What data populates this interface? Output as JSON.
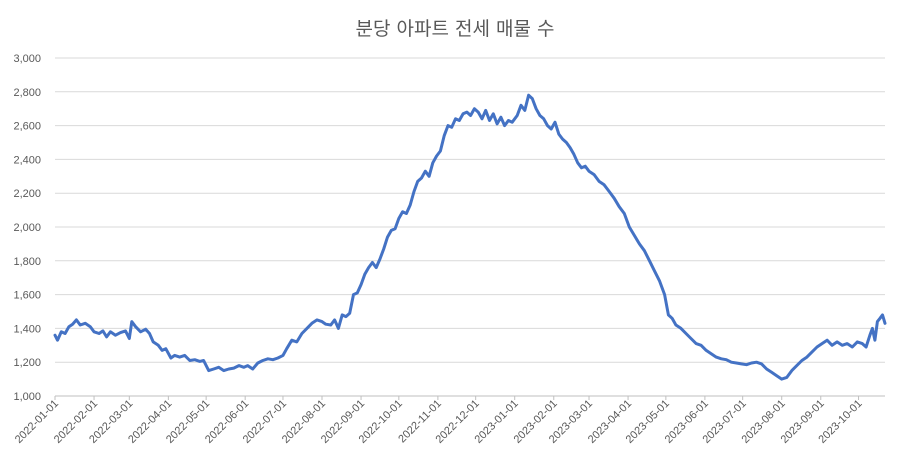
{
  "chart_data": {
    "type": "line",
    "title": "분당 아파트 전세 매물 수",
    "xlabel": "",
    "ylabel": "",
    "ylim": [
      1000,
      3000
    ],
    "y_ticks": [
      "1,000",
      "1,200",
      "1,400",
      "1,600",
      "1,800",
      "2,000",
      "2,200",
      "2,400",
      "2,600",
      "2,800",
      "3,000"
    ],
    "x_ticks": [
      "2022-01-01",
      "2022-02-01",
      "2022-03-01",
      "2022-04-01",
      "2022-05-01",
      "2022-06-01",
      "2022-07-01",
      "2022-08-01",
      "2022-09-01",
      "2022-10-01",
      "2022-11-01",
      "2022-12-01",
      "2023-01-01",
      "2023-02-01",
      "2023-03-01",
      "2023-04-01",
      "2023-05-01",
      "2023-06-01",
      "2023-07-01",
      "2023-08-01",
      "2023-09-01",
      "2023-10-01"
    ],
    "x_range": [
      "2022-01-01",
      "2023-10-22"
    ],
    "grid": "horizontal",
    "legend": "none",
    "line_color": "#4472C4",
    "series": [
      {
        "points": [
          [
            "2022-01-01",
            1360
          ],
          [
            "2022-01-03",
            1330
          ],
          [
            "2022-01-06",
            1380
          ],
          [
            "2022-01-09",
            1370
          ],
          [
            "2022-01-12",
            1410
          ],
          [
            "2022-01-15",
            1425
          ],
          [
            "2022-01-18",
            1450
          ],
          [
            "2022-01-21",
            1420
          ],
          [
            "2022-01-25",
            1430
          ],
          [
            "2022-01-29",
            1410
          ],
          [
            "2022-02-01",
            1380
          ],
          [
            "2022-02-05",
            1370
          ],
          [
            "2022-02-08",
            1385
          ],
          [
            "2022-02-11",
            1350
          ],
          [
            "2022-02-14",
            1380
          ],
          [
            "2022-02-18",
            1360
          ],
          [
            "2022-02-22",
            1375
          ],
          [
            "2022-02-26",
            1385
          ],
          [
            "2022-03-01",
            1340
          ],
          [
            "2022-03-03",
            1440
          ],
          [
            "2022-03-06",
            1410
          ],
          [
            "2022-03-10",
            1380
          ],
          [
            "2022-03-14",
            1395
          ],
          [
            "2022-03-17",
            1370
          ],
          [
            "2022-03-20",
            1320
          ],
          [
            "2022-03-24",
            1300
          ],
          [
            "2022-03-27",
            1270
          ],
          [
            "2022-03-30",
            1280
          ],
          [
            "2022-04-03",
            1225
          ],
          [
            "2022-04-06",
            1240
          ],
          [
            "2022-04-10",
            1230
          ],
          [
            "2022-04-14",
            1240
          ],
          [
            "2022-04-18",
            1210
          ],
          [
            "2022-04-22",
            1215
          ],
          [
            "2022-04-26",
            1205
          ],
          [
            "2022-04-29",
            1210
          ],
          [
            "2022-05-03",
            1150
          ],
          [
            "2022-05-07",
            1160
          ],
          [
            "2022-05-11",
            1170
          ],
          [
            "2022-05-15",
            1150
          ],
          [
            "2022-05-19",
            1160
          ],
          [
            "2022-05-23",
            1165
          ],
          [
            "2022-05-27",
            1180
          ],
          [
            "2022-05-31",
            1170
          ],
          [
            "2022-06-03",
            1180
          ],
          [
            "2022-06-07",
            1160
          ],
          [
            "2022-06-11",
            1195
          ],
          [
            "2022-06-15",
            1210
          ],
          [
            "2022-06-19",
            1220
          ],
          [
            "2022-06-23",
            1215
          ],
          [
            "2022-06-27",
            1225
          ],
          [
            "2022-07-01",
            1240
          ],
          [
            "2022-07-04",
            1280
          ],
          [
            "2022-07-08",
            1330
          ],
          [
            "2022-07-12",
            1320
          ],
          [
            "2022-07-16",
            1370
          ],
          [
            "2022-07-20",
            1400
          ],
          [
            "2022-07-24",
            1430
          ],
          [
            "2022-07-28",
            1450
          ],
          [
            "2022-08-01",
            1440
          ],
          [
            "2022-08-04",
            1425
          ],
          [
            "2022-08-08",
            1420
          ],
          [
            "2022-08-11",
            1450
          ],
          [
            "2022-08-14",
            1400
          ],
          [
            "2022-08-17",
            1480
          ],
          [
            "2022-08-20",
            1470
          ],
          [
            "2022-08-23",
            1490
          ],
          [
            "2022-08-26",
            1600
          ],
          [
            "2022-08-29",
            1610
          ],
          [
            "2022-09-01",
            1660
          ],
          [
            "2022-09-04",
            1720
          ],
          [
            "2022-09-07",
            1760
          ],
          [
            "2022-09-10",
            1790
          ],
          [
            "2022-09-13",
            1760
          ],
          [
            "2022-09-16",
            1810
          ],
          [
            "2022-09-19",
            1870
          ],
          [
            "2022-09-22",
            1940
          ],
          [
            "2022-09-25",
            1980
          ],
          [
            "2022-09-28",
            1990
          ],
          [
            "2022-10-01",
            2050
          ],
          [
            "2022-10-04",
            2090
          ],
          [
            "2022-10-07",
            2080
          ],
          [
            "2022-10-10",
            2130
          ],
          [
            "2022-10-13",
            2210
          ],
          [
            "2022-10-16",
            2270
          ],
          [
            "2022-10-19",
            2290
          ],
          [
            "2022-10-22",
            2330
          ],
          [
            "2022-10-25",
            2300
          ],
          [
            "2022-10-28",
            2380
          ],
          [
            "2022-10-31",
            2420
          ],
          [
            "2022-11-03",
            2450
          ],
          [
            "2022-11-06",
            2540
          ],
          [
            "2022-11-09",
            2600
          ],
          [
            "2022-11-12",
            2590
          ],
          [
            "2022-11-15",
            2640
          ],
          [
            "2022-11-18",
            2630
          ],
          [
            "2022-11-21",
            2670
          ],
          [
            "2022-11-24",
            2680
          ],
          [
            "2022-11-27",
            2660
          ],
          [
            "2022-11-30",
            2700
          ],
          [
            "2022-12-03",
            2680
          ],
          [
            "2022-12-06",
            2640
          ],
          [
            "2022-12-09",
            2690
          ],
          [
            "2022-12-12",
            2630
          ],
          [
            "2022-12-15",
            2670
          ],
          [
            "2022-12-18",
            2610
          ],
          [
            "2022-12-21",
            2650
          ],
          [
            "2022-12-24",
            2600
          ],
          [
            "2022-12-27",
            2630
          ],
          [
            "2022-12-30",
            2620
          ],
          [
            "2023-01-03",
            2660
          ],
          [
            "2023-01-06",
            2720
          ],
          [
            "2023-01-09",
            2690
          ],
          [
            "2023-01-12",
            2780
          ],
          [
            "2023-01-15",
            2760
          ],
          [
            "2023-01-18",
            2700
          ],
          [
            "2023-01-21",
            2660
          ],
          [
            "2023-01-24",
            2640
          ],
          [
            "2023-01-27",
            2600
          ],
          [
            "2023-01-30",
            2580
          ],
          [
            "2023-02-02",
            2620
          ],
          [
            "2023-02-05",
            2550
          ],
          [
            "2023-02-08",
            2520
          ],
          [
            "2023-02-11",
            2500
          ],
          [
            "2023-02-14",
            2470
          ],
          [
            "2023-02-17",
            2430
          ],
          [
            "2023-02-20",
            2380
          ],
          [
            "2023-02-23",
            2350
          ],
          [
            "2023-02-26",
            2360
          ],
          [
            "2023-03-01",
            2330
          ],
          [
            "2023-03-05",
            2310
          ],
          [
            "2023-03-09",
            2270
          ],
          [
            "2023-03-13",
            2250
          ],
          [
            "2023-03-17",
            2210
          ],
          [
            "2023-03-21",
            2170
          ],
          [
            "2023-03-25",
            2120
          ],
          [
            "2023-03-29",
            2080
          ],
          [
            "2023-04-02",
            2000
          ],
          [
            "2023-04-06",
            1950
          ],
          [
            "2023-04-10",
            1900
          ],
          [
            "2023-04-14",
            1860
          ],
          [
            "2023-04-18",
            1800
          ],
          [
            "2023-04-22",
            1740
          ],
          [
            "2023-04-26",
            1680
          ],
          [
            "2023-04-30",
            1600
          ],
          [
            "2023-05-03",
            1480
          ],
          [
            "2023-05-06",
            1460
          ],
          [
            "2023-05-09",
            1420
          ],
          [
            "2023-05-13",
            1400
          ],
          [
            "2023-05-17",
            1370
          ],
          [
            "2023-05-21",
            1340
          ],
          [
            "2023-05-25",
            1310
          ],
          [
            "2023-05-29",
            1300
          ],
          [
            "2023-06-02",
            1270
          ],
          [
            "2023-06-06",
            1250
          ],
          [
            "2023-06-10",
            1230
          ],
          [
            "2023-06-14",
            1220
          ],
          [
            "2023-06-18",
            1215
          ],
          [
            "2023-06-22",
            1200
          ],
          [
            "2023-06-26",
            1195
          ],
          [
            "2023-06-30",
            1190
          ],
          [
            "2023-07-04",
            1185
          ],
          [
            "2023-07-08",
            1195
          ],
          [
            "2023-07-12",
            1200
          ],
          [
            "2023-07-16",
            1190
          ],
          [
            "2023-07-20",
            1160
          ],
          [
            "2023-07-24",
            1140
          ],
          [
            "2023-07-28",
            1120
          ],
          [
            "2023-08-01",
            1100
          ],
          [
            "2023-08-05",
            1110
          ],
          [
            "2023-08-09",
            1150
          ],
          [
            "2023-08-13",
            1180
          ],
          [
            "2023-08-17",
            1210
          ],
          [
            "2023-08-21",
            1230
          ],
          [
            "2023-08-25",
            1260
          ],
          [
            "2023-08-29",
            1290
          ],
          [
            "2023-09-02",
            1310
          ],
          [
            "2023-09-06",
            1330
          ],
          [
            "2023-09-10",
            1300
          ],
          [
            "2023-09-14",
            1320
          ],
          [
            "2023-09-18",
            1300
          ],
          [
            "2023-09-22",
            1310
          ],
          [
            "2023-09-26",
            1290
          ],
          [
            "2023-09-30",
            1320
          ],
          [
            "2023-10-04",
            1310
          ],
          [
            "2023-10-07",
            1290
          ],
          [
            "2023-10-10",
            1360
          ],
          [
            "2023-10-12",
            1400
          ],
          [
            "2023-10-14",
            1330
          ],
          [
            "2023-10-16",
            1440
          ],
          [
            "2023-10-18",
            1460
          ],
          [
            "2023-10-20",
            1480
          ],
          [
            "2023-10-22",
            1430
          ]
        ]
      }
    ]
  }
}
